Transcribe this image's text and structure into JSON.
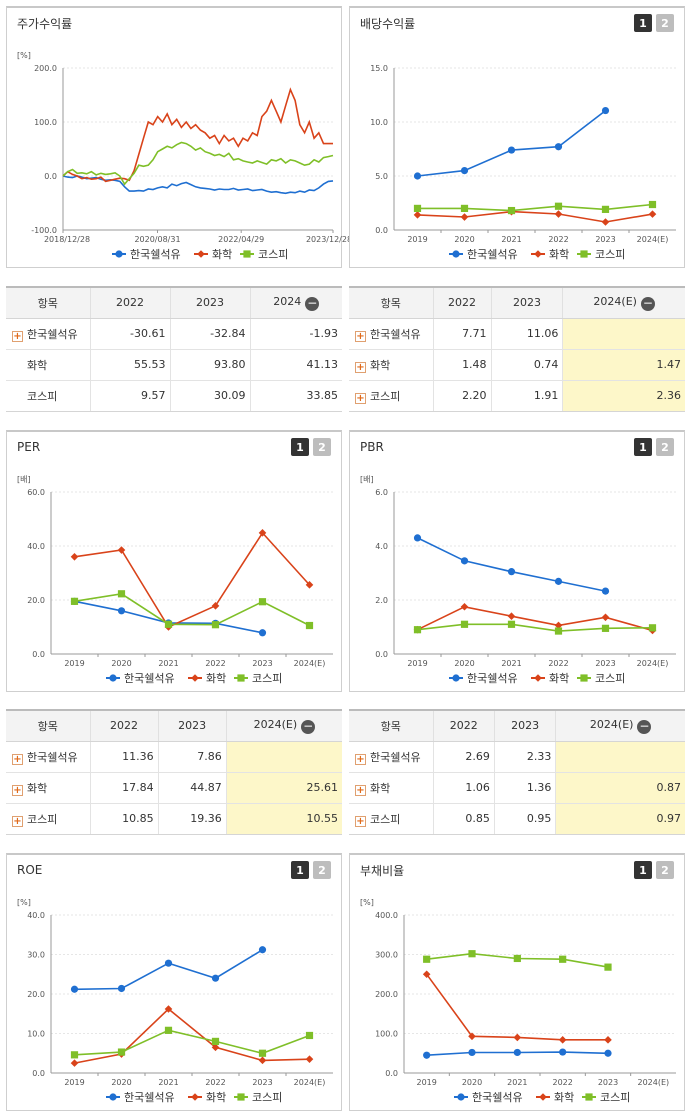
{
  "colors": {
    "blue": "#1f6fd1",
    "red": "#d9431a",
    "green": "#7fbf28"
  },
  "series_names": [
    "한국쉘석유",
    "화학",
    "코스피"
  ],
  "stock": {
    "title": "주가수익률",
    "unit": "[%]",
    "chart_data": {
      "type": "line",
      "ylim": [
        -100,
        200
      ],
      "yticks": [
        "200.0",
        "100.0",
        "0.0",
        "-100.0"
      ],
      "xticks": [
        "2018/12/28",
        "2020/08/31",
        "2022/04/29",
        "2023/12/28"
      ],
      "series": [
        {
          "name": "한국쉘석유",
          "values": [
            0,
            -2,
            -3,
            0,
            -2,
            -5,
            -4,
            -3,
            -6,
            -8,
            -7,
            -8,
            -10,
            -20,
            -28,
            -28,
            -27,
            -28,
            -24,
            -25,
            -22,
            -20,
            -22,
            -15,
            -18,
            -14,
            -12,
            -16,
            -20,
            -22,
            -23,
            -24,
            -26,
            -24,
            -25,
            -25,
            -23,
            -26,
            -25,
            -24,
            -27,
            -26,
            -25,
            -28,
            -30,
            -29,
            -31,
            -32,
            -30,
            -31,
            -28,
            -30,
            -26,
            -27,
            -22,
            -15,
            -10,
            -9
          ]
        },
        {
          "name": "화학",
          "values": [
            0,
            8,
            3,
            0,
            -5,
            -3,
            -6,
            -5,
            -2,
            -10,
            -8,
            -6,
            -4,
            -5,
            -8,
            10,
            40,
            70,
            100,
            95,
            110,
            100,
            115,
            95,
            105,
            90,
            100,
            88,
            95,
            85,
            80,
            70,
            75,
            60,
            75,
            65,
            70,
            55,
            70,
            65,
            80,
            75,
            110,
            120,
            140,
            120,
            100,
            130,
            160,
            140,
            95,
            80,
            100,
            70,
            80,
            60,
            60,
            60
          ]
        },
        {
          "name": "코스피",
          "values": [
            0,
            8,
            12,
            5,
            6,
            4,
            8,
            2,
            5,
            3,
            4,
            6,
            0,
            -15,
            -5,
            5,
            20,
            18,
            20,
            30,
            45,
            50,
            55,
            52,
            58,
            62,
            60,
            55,
            48,
            52,
            45,
            42,
            38,
            40,
            36,
            42,
            30,
            32,
            28,
            26,
            24,
            28,
            25,
            22,
            30,
            28,
            32,
            24,
            30,
            28,
            24,
            20,
            22,
            30,
            26,
            34,
            36,
            38
          ]
        }
      ]
    },
    "table": {
      "headers": [
        "항목",
        "2022",
        "2023",
        "2024"
      ],
      "rows": [
        {
          "name": "한국쉘석유",
          "plus": true,
          "v": [
            "-30.61",
            "-32.84",
            "-1.93"
          ]
        },
        {
          "name": "화학",
          "plus": false,
          "v": [
            "55.53",
            "93.80",
            "41.13"
          ]
        },
        {
          "name": "코스피",
          "plus": false,
          "v": [
            "9.57",
            "30.09",
            "33.85"
          ]
        }
      ]
    }
  },
  "dividend": {
    "title": "배당수익률",
    "chart_data": {
      "type": "line",
      "ylim": [
        0,
        15
      ],
      "yticks": [
        "15.0",
        "10.0",
        "5.0",
        "0.0"
      ],
      "x": [
        "2019",
        "2020",
        "2021",
        "2022",
        "2023",
        "2024(E)"
      ],
      "series": [
        {
          "name": "한국쉘석유",
          "values": [
            5.0,
            5.5,
            7.4,
            7.71,
            11.06,
            null
          ]
        },
        {
          "name": "화학",
          "values": [
            1.4,
            1.2,
            1.7,
            1.48,
            0.74,
            1.47
          ]
        },
        {
          "name": "코스피",
          "values": [
            2.0,
            2.0,
            1.8,
            2.2,
            1.91,
            2.36
          ]
        }
      ]
    },
    "table": {
      "headers": [
        "항목",
        "2022",
        "2023",
        "2024(E)"
      ],
      "rows": [
        {
          "name": "한국쉘석유",
          "plus": true,
          "v": [
            "7.71",
            "11.06",
            ""
          ]
        },
        {
          "name": "화학",
          "plus": true,
          "v": [
            "1.48",
            "0.74",
            "1.47"
          ]
        },
        {
          "name": "코스피",
          "plus": true,
          "v": [
            "2.20",
            "1.91",
            "2.36"
          ]
        }
      ]
    }
  },
  "per": {
    "title": "PER",
    "unit": "[배]",
    "chart_data": {
      "type": "line",
      "ylim": [
        0,
        60
      ],
      "yticks": [
        "60.0",
        "40.0",
        "20.0",
        "0.0"
      ],
      "x": [
        "2019",
        "2020",
        "2021",
        "2022",
        "2023",
        "2024(E)"
      ],
      "series": [
        {
          "name": "한국쉘석유",
          "values": [
            19.5,
            16.0,
            11.5,
            11.36,
            7.86,
            null
          ]
        },
        {
          "name": "화학",
          "values": [
            36.0,
            38.5,
            10.0,
            17.84,
            44.87,
            25.61
          ]
        },
        {
          "name": "코스피",
          "values": [
            19.5,
            22.3,
            11.0,
            10.85,
            19.36,
            10.55
          ]
        }
      ]
    },
    "table": {
      "headers": [
        "항목",
        "2022",
        "2023",
        "2024(E)"
      ],
      "rows": [
        {
          "name": "한국쉘석유",
          "plus": true,
          "v": [
            "11.36",
            "7.86",
            ""
          ]
        },
        {
          "name": "화학",
          "plus": true,
          "v": [
            "17.84",
            "44.87",
            "25.61"
          ]
        },
        {
          "name": "코스피",
          "plus": true,
          "v": [
            "10.85",
            "19.36",
            "10.55"
          ]
        }
      ]
    }
  },
  "pbr": {
    "title": "PBR",
    "unit": "[배]",
    "chart_data": {
      "type": "line",
      "ylim": [
        0,
        6
      ],
      "yticks": [
        "6.0",
        "4.0",
        "2.0",
        "0.0"
      ],
      "x": [
        "2019",
        "2020",
        "2021",
        "2022",
        "2023",
        "2024(E)"
      ],
      "series": [
        {
          "name": "한국쉘석유",
          "values": [
            4.3,
            3.45,
            3.05,
            2.69,
            2.33,
            null
          ]
        },
        {
          "name": "화학",
          "values": [
            0.9,
            1.75,
            1.4,
            1.06,
            1.36,
            0.87
          ]
        },
        {
          "name": "코스피",
          "values": [
            0.9,
            1.1,
            1.1,
            0.85,
            0.95,
            0.97
          ]
        }
      ]
    },
    "table": {
      "headers": [
        "항목",
        "2022",
        "2023",
        "2024(E)"
      ],
      "rows": [
        {
          "name": "한국쉘석유",
          "plus": true,
          "v": [
            "2.69",
            "2.33",
            ""
          ]
        },
        {
          "name": "화학",
          "plus": true,
          "v": [
            "1.06",
            "1.36",
            "0.87"
          ]
        },
        {
          "name": "코스피",
          "plus": true,
          "v": [
            "0.85",
            "0.95",
            "0.97"
          ]
        }
      ]
    }
  },
  "roe": {
    "title": "ROE",
    "unit": "[%]",
    "chart_data": {
      "type": "line",
      "ylim": [
        0,
        40
      ],
      "yticks": [
        "40.0",
        "30.0",
        "20.0",
        "10.0",
        "0.0"
      ],
      "x": [
        "2019",
        "2020",
        "2021",
        "2022",
        "2023",
        "2024(E)"
      ],
      "series": [
        {
          "name": "한국쉘석유",
          "values": [
            21.2,
            21.4,
            27.8,
            24.0,
            31.2,
            null
          ]
        },
        {
          "name": "화학",
          "values": [
            2.5,
            4.8,
            16.2,
            6.5,
            3.2,
            3.5
          ]
        },
        {
          "name": "코스피",
          "values": [
            4.6,
            5.3,
            10.8,
            8.0,
            5.0,
            9.5
          ]
        }
      ]
    }
  },
  "debt": {
    "title": "부채비율",
    "unit": "[%]",
    "chart_data": {
      "type": "line",
      "ylim": [
        0,
        400
      ],
      "yticks": [
        "400.0",
        "300.0",
        "200.0",
        "100.0",
        "0.0"
      ],
      "x": [
        "2019",
        "2020",
        "2021",
        "2022",
        "2023",
        "2024(E)"
      ],
      "series": [
        {
          "name": "한국쉘석유",
          "values": [
            45,
            52,
            52,
            53,
            50,
            null
          ]
        },
        {
          "name": "화학",
          "values": [
            250,
            93,
            90,
            84,
            84,
            null
          ]
        },
        {
          "name": "코스피",
          "values": [
            288,
            302,
            290,
            288,
            268,
            null
          ]
        }
      ]
    }
  },
  "tabs": [
    "1",
    "2"
  ]
}
